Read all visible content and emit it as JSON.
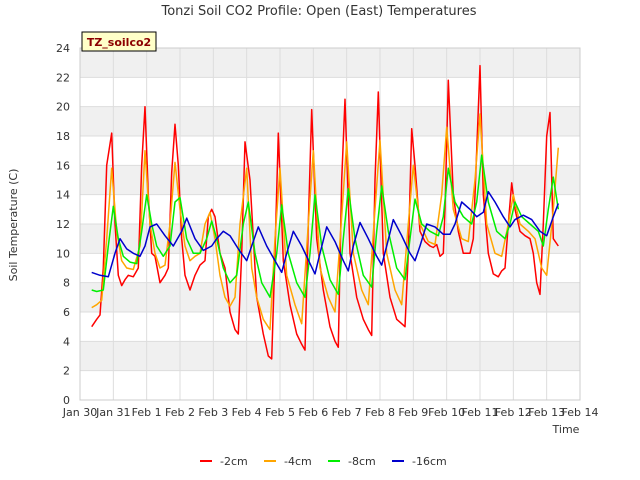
{
  "chart_data": {
    "type": "line",
    "title": "Tonzi Soil CO2 Profile: Open (East) Temperatures",
    "xlabel": "Time",
    "ylabel": "Soil Temperature (C)",
    "ylim": [
      0,
      24
    ],
    "yticks": [
      0,
      2,
      4,
      6,
      8,
      10,
      12,
      14,
      16,
      18,
      20,
      22,
      24
    ],
    "xlim": [
      0,
      15
    ],
    "xticks": [
      {
        "pos": 0,
        "label": "Jan 30"
      },
      {
        "pos": 1,
        "label": "Jan 31"
      },
      {
        "pos": 2,
        "label": "Feb 1"
      },
      {
        "pos": 3,
        "label": "Feb 2"
      },
      {
        "pos": 4,
        "label": "Feb 3"
      },
      {
        "pos": 5,
        "label": "Feb 4"
      },
      {
        "pos": 6,
        "label": "Feb 5"
      },
      {
        "pos": 7,
        "label": "Feb 6"
      },
      {
        "pos": 8,
        "label": "Feb 7"
      },
      {
        "pos": 9,
        "label": "Feb 8"
      },
      {
        "pos": 10,
        "label": "Feb 9"
      },
      {
        "pos": 11,
        "label": "Feb 10"
      },
      {
        "pos": 12,
        "label": "Feb 11"
      },
      {
        "pos": 13,
        "label": "Feb 12"
      },
      {
        "pos": 14,
        "label": "Feb 13"
      },
      {
        "pos": 15,
        "label": "Feb 14"
      }
    ],
    "grid": true,
    "legend_position": "bottom",
    "annotation": "TZ_soilco2",
    "series": [
      {
        "name": "-2cm",
        "color": "#ff0000",
        "x": [
          0.35,
          0.5,
          0.6,
          0.7,
          0.8,
          0.95,
          1.05,
          1.15,
          1.25,
          1.35,
          1.45,
          1.6,
          1.75,
          1.85,
          1.95,
          2.05,
          2.15,
          2.25,
          2.4,
          2.55,
          2.65,
          2.75,
          2.85,
          2.95,
          3.05,
          3.15,
          3.3,
          3.45,
          3.6,
          3.75,
          3.85,
          3.95,
          4.05,
          4.2,
          4.35,
          4.5,
          4.65,
          4.75,
          4.85,
          4.95,
          5.1,
          5.3,
          5.5,
          5.65,
          5.75,
          5.85,
          5.95,
          6.1,
          6.3,
          6.5,
          6.65,
          6.75,
          6.85,
          6.95,
          7.1,
          7.3,
          7.5,
          7.65,
          7.75,
          7.85,
          7.95,
          8.1,
          8.3,
          8.5,
          8.65,
          8.75,
          8.85,
          8.95,
          9.1,
          9.3,
          9.5,
          9.65,
          9.75,
          9.85,
          9.95,
          10.05,
          10.2,
          10.35,
          10.5,
          10.6,
          10.7,
          10.8,
          10.9,
          10.95,
          11.05,
          11.2,
          11.35,
          11.5,
          11.6,
          11.7,
          11.8,
          11.9,
          12.0,
          12.1,
          12.25,
          12.4,
          12.55,
          12.65,
          12.75,
          12.85,
          12.95,
          13.05,
          13.2,
          13.35,
          13.5,
          13.6,
          13.7,
          13.8,
          13.9,
          14.0,
          14.1,
          14.2,
          14.35
        ],
        "y": [
          5.0,
          5.5,
          5.8,
          9.0,
          16.0,
          18.2,
          12.0,
          8.5,
          7.8,
          8.2,
          8.5,
          8.4,
          9.0,
          16.0,
          20.0,
          14.0,
          10.0,
          9.8,
          8.0,
          8.5,
          9.0,
          15.5,
          18.8,
          16.0,
          11.0,
          8.5,
          7.5,
          8.5,
          9.2,
          9.5,
          12.5,
          13.0,
          12.5,
          10.0,
          9.0,
          6.0,
          4.8,
          4.5,
          10.0,
          17.6,
          15.0,
          7.0,
          4.5,
          3.0,
          2.8,
          10.0,
          18.2,
          9.5,
          6.5,
          4.5,
          3.8,
          3.4,
          12.0,
          19.8,
          11.0,
          7.5,
          5.0,
          4.0,
          3.6,
          15.0,
          20.5,
          10.0,
          7.0,
          5.5,
          4.8,
          4.4,
          15.0,
          21.0,
          10.0,
          7.0,
          5.5,
          5.2,
          5.0,
          10.0,
          18.5,
          16.0,
          11.5,
          10.8,
          10.5,
          10.4,
          10.6,
          9.8,
          10.0,
          13.0,
          21.8,
          14.0,
          11.5,
          10.0,
          10.0,
          10.0,
          11.0,
          17.0,
          22.8,
          14.0,
          10.0,
          8.6,
          8.4,
          8.8,
          9.0,
          12.0,
          14.8,
          13.0,
          11.5,
          11.2,
          11.0,
          10.0,
          8.0,
          7.2,
          12.0,
          18.0,
          19.6,
          11.0,
          10.5
        ]
      },
      {
        "name": "-4cm",
        "color": "#ffa500",
        "x": [
          0.35,
          0.5,
          0.65,
          0.8,
          0.95,
          1.1,
          1.25,
          1.4,
          1.6,
          1.8,
          1.95,
          2.1,
          2.25,
          2.4,
          2.55,
          2.7,
          2.85,
          3.0,
          3.15,
          3.3,
          3.45,
          3.6,
          3.75,
          3.9,
          4.05,
          4.2,
          4.35,
          4.5,
          4.65,
          4.8,
          5.0,
          5.15,
          5.3,
          5.5,
          5.7,
          5.85,
          6.0,
          6.2,
          6.45,
          6.65,
          6.85,
          7.0,
          7.2,
          7.45,
          7.65,
          7.85,
          8.0,
          8.2,
          8.45,
          8.65,
          8.85,
          9.0,
          9.2,
          9.45,
          9.65,
          9.85,
          10.0,
          10.2,
          10.45,
          10.65,
          10.85,
          11.0,
          11.2,
          11.45,
          11.65,
          11.85,
          12.0,
          12.2,
          12.45,
          12.65,
          12.85,
          13.0,
          13.2,
          13.45,
          13.65,
          13.85,
          14.0,
          14.2,
          14.35
        ],
        "y": [
          6.3,
          6.5,
          6.8,
          11.0,
          15.8,
          11.5,
          9.5,
          9.0,
          8.9,
          10.5,
          17.0,
          12.0,
          10.0,
          9.0,
          9.2,
          12.0,
          16.2,
          13.0,
          10.5,
          9.5,
          9.8,
          10.0,
          12.0,
          12.8,
          11.0,
          8.5,
          7.0,
          6.4,
          7.0,
          12.0,
          15.8,
          9.0,
          7.0,
          5.5,
          4.8,
          11.0,
          15.8,
          8.5,
          6.5,
          5.2,
          12.0,
          17.0,
          9.0,
          7.0,
          6.0,
          12.5,
          17.6,
          10.0,
          7.5,
          6.5,
          13.0,
          17.7,
          10.0,
          7.5,
          6.5,
          12.0,
          16.0,
          12.0,
          10.8,
          10.6,
          14.0,
          18.6,
          13.0,
          11.0,
          10.8,
          15.0,
          19.5,
          12.0,
          10.0,
          9.8,
          12.0,
          14.0,
          12.0,
          11.5,
          11.0,
          9.0,
          8.5,
          13.0,
          17.2
        ]
      },
      {
        "name": "-8cm",
        "color": "#00ee00",
        "x": [
          0.35,
          0.5,
          0.7,
          0.85,
          1.0,
          1.15,
          1.3,
          1.5,
          1.7,
          1.85,
          2.0,
          2.15,
          2.3,
          2.5,
          2.7,
          2.85,
          3.0,
          3.2,
          3.4,
          3.6,
          3.8,
          3.95,
          4.1,
          4.3,
          4.5,
          4.7,
          4.9,
          5.05,
          5.25,
          5.45,
          5.7,
          5.9,
          6.05,
          6.25,
          6.5,
          6.75,
          6.9,
          7.05,
          7.25,
          7.5,
          7.75,
          7.9,
          8.05,
          8.25,
          8.5,
          8.75,
          8.9,
          9.05,
          9.25,
          9.5,
          9.75,
          9.9,
          10.05,
          10.25,
          10.5,
          10.75,
          10.9,
          11.05,
          11.25,
          11.5,
          11.75,
          11.9,
          12.05,
          12.25,
          12.5,
          12.75,
          12.9,
          13.05,
          13.25,
          13.5,
          13.75,
          13.9,
          14.05,
          14.2,
          14.35
        ],
        "y": [
          7.5,
          7.4,
          7.5,
          10.5,
          13.2,
          11.0,
          9.8,
          9.4,
          9.3,
          11.5,
          14.0,
          12.0,
          10.5,
          9.8,
          10.5,
          13.5,
          13.8,
          11.0,
          10.0,
          10.0,
          11.0,
          12.2,
          11.0,
          9.0,
          8.0,
          8.5,
          12.0,
          13.5,
          10.0,
          8.0,
          7.0,
          10.0,
          13.3,
          10.0,
          8.0,
          7.0,
          10.0,
          14.0,
          10.5,
          8.2,
          7.2,
          11.0,
          14.4,
          11.0,
          8.5,
          7.7,
          11.5,
          14.6,
          11.5,
          9.0,
          8.2,
          11.0,
          13.7,
          12.0,
          11.5,
          11.2,
          12.5,
          15.8,
          13.5,
          12.5,
          12.0,
          13.5,
          16.7,
          13.5,
          11.5,
          11.0,
          12.0,
          13.5,
          12.5,
          12.0,
          11.5,
          10.5,
          13.0,
          15.2,
          13.0
        ]
      },
      {
        "name": "-16cm",
        "color": "#0000cc",
        "x": [
          0.35,
          0.6,
          0.85,
          1.05,
          1.2,
          1.4,
          1.6,
          1.8,
          1.95,
          2.1,
          2.3,
          2.55,
          2.8,
          3.05,
          3.2,
          3.45,
          3.7,
          3.95,
          4.1,
          4.3,
          4.5,
          4.75,
          5.0,
          5.15,
          5.35,
          5.6,
          5.85,
          6.05,
          6.2,
          6.4,
          6.65,
          6.9,
          7.05,
          7.2,
          7.4,
          7.65,
          7.9,
          8.05,
          8.2,
          8.4,
          8.65,
          8.9,
          9.05,
          9.2,
          9.4,
          9.65,
          9.9,
          10.05,
          10.2,
          10.4,
          10.65,
          10.9,
          11.1,
          11.25,
          11.45,
          11.7,
          11.9,
          12.1,
          12.25,
          12.45,
          12.7,
          12.9,
          13.05,
          13.3,
          13.55,
          13.8,
          14.0,
          14.2,
          14.35
        ],
        "y": [
          8.7,
          8.5,
          8.4,
          10.0,
          11.0,
          10.3,
          10.0,
          9.8,
          10.5,
          11.8,
          12.0,
          11.2,
          10.5,
          11.5,
          12.4,
          11.0,
          10.2,
          10.5,
          11.0,
          11.5,
          11.2,
          10.3,
          9.5,
          10.5,
          11.8,
          10.5,
          9.5,
          8.7,
          10.0,
          11.5,
          10.5,
          9.3,
          8.6,
          10.0,
          11.8,
          10.8,
          9.5,
          8.8,
          10.5,
          12.1,
          11.0,
          9.8,
          9.2,
          10.5,
          12.3,
          11.2,
          10.0,
          9.5,
          10.5,
          12.0,
          11.8,
          11.3,
          11.3,
          12.0,
          13.5,
          13.0,
          12.5,
          12.8,
          14.2,
          13.5,
          12.5,
          11.8,
          12.3,
          12.6,
          12.3,
          11.5,
          11.2,
          12.5,
          13.4
        ]
      }
    ]
  }
}
